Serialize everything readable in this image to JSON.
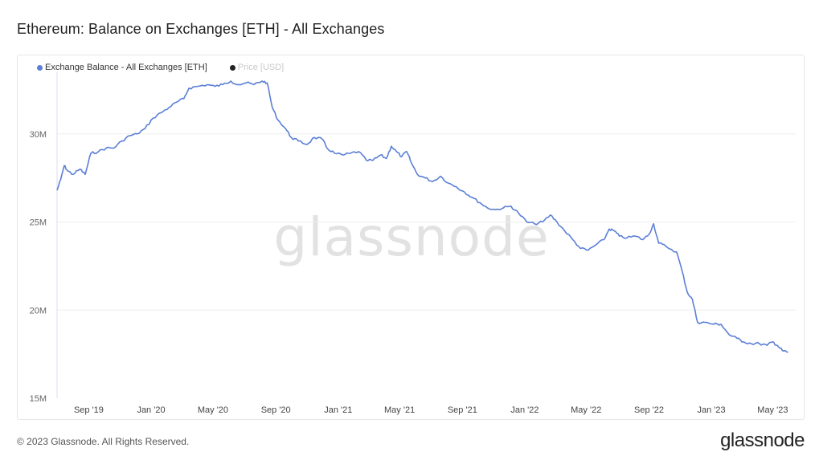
{
  "title": "Ethereum: Balance on Exchanges [ETH] - All Exchanges",
  "footer": "© 2023 Glassnode. All Rights Reserved.",
  "brand": "glassnode",
  "watermark": "glassnode",
  "colors": {
    "series": "#5b7fd6",
    "price": "#222222",
    "grid": "#eeeeee"
  },
  "chart_data": {
    "type": "line",
    "title": "Ethereum: Balance on Exchanges [ETH] - All Exchanges",
    "xlabel": "",
    "ylabel": "",
    "grid": true,
    "legend_position": "top-left",
    "x_range": [
      "2019-07-01",
      "2023-06-15"
    ],
    "ylim": [
      15000000,
      33500000
    ],
    "y_ticks": [
      {
        "value": 15000000,
        "label": "15M"
      },
      {
        "value": 20000000,
        "label": "20M"
      },
      {
        "value": 25000000,
        "label": "25M"
      },
      {
        "value": 30000000,
        "label": "30M"
      }
    ],
    "x_ticks": [
      {
        "date": "2019-09-01",
        "label": "Sep '19"
      },
      {
        "date": "2020-01-01",
        "label": "Jan '20"
      },
      {
        "date": "2020-05-01",
        "label": "May '20"
      },
      {
        "date": "2020-09-01",
        "label": "Sep '20"
      },
      {
        "date": "2021-01-01",
        "label": "Jan '21"
      },
      {
        "date": "2021-05-01",
        "label": "May '21"
      },
      {
        "date": "2021-09-01",
        "label": "Sep '21"
      },
      {
        "date": "2022-01-01",
        "label": "Jan '22"
      },
      {
        "date": "2022-05-01",
        "label": "May '22"
      },
      {
        "date": "2022-09-01",
        "label": "Sep '22"
      },
      {
        "date": "2023-01-01",
        "label": "Jan '23"
      },
      {
        "date": "2023-05-01",
        "label": "May '23"
      }
    ],
    "series": [
      {
        "name": "Exchange Balance - All Exchanges [ETH]",
        "color": "#5b7fd6",
        "active": true,
        "points": [
          [
            "2019-07-01",
            26800000
          ],
          [
            "2019-07-08",
            27400000
          ],
          [
            "2019-07-15",
            28200000
          ],
          [
            "2019-07-22",
            27900000
          ],
          [
            "2019-08-01",
            27700000
          ],
          [
            "2019-08-15",
            28000000
          ],
          [
            "2019-08-25",
            27700000
          ],
          [
            "2019-09-05",
            28900000
          ],
          [
            "2019-09-20",
            29000000
          ],
          [
            "2019-10-05",
            29200000
          ],
          [
            "2019-10-20",
            29200000
          ],
          [
            "2019-11-05",
            29600000
          ],
          [
            "2019-11-20",
            29900000
          ],
          [
            "2019-12-05",
            30000000
          ],
          [
            "2019-12-20",
            30300000
          ],
          [
            "2020-01-05",
            30900000
          ],
          [
            "2020-01-20",
            31200000
          ],
          [
            "2020-02-05",
            31500000
          ],
          [
            "2020-02-20",
            31800000
          ],
          [
            "2020-03-05",
            32000000
          ],
          [
            "2020-03-15",
            32600000
          ],
          [
            "2020-04-01",
            32700000
          ],
          [
            "2020-04-20",
            32800000
          ],
          [
            "2020-05-05",
            32700000
          ],
          [
            "2020-05-20",
            32800000
          ],
          [
            "2020-06-05",
            33000000
          ],
          [
            "2020-06-20",
            32800000
          ],
          [
            "2020-07-05",
            32900000
          ],
          [
            "2020-07-20",
            32800000
          ],
          [
            "2020-08-05",
            33000000
          ],
          [
            "2020-08-15",
            32900000
          ],
          [
            "2020-08-25",
            31500000
          ],
          [
            "2020-09-05",
            30800000
          ],
          [
            "2020-09-20",
            30300000
          ],
          [
            "2020-10-01",
            29800000
          ],
          [
            "2020-10-15",
            29600000
          ],
          [
            "2020-11-01",
            29400000
          ],
          [
            "2020-11-15",
            29800000
          ],
          [
            "2020-12-01",
            29700000
          ],
          [
            "2020-12-10",
            29200000
          ],
          [
            "2020-12-25",
            28900000
          ],
          [
            "2021-01-10",
            28800000
          ],
          [
            "2021-01-25",
            28900000
          ],
          [
            "2021-02-10",
            29000000
          ],
          [
            "2021-02-25",
            28500000
          ],
          [
            "2021-03-10",
            28500000
          ],
          [
            "2021-03-25",
            28800000
          ],
          [
            "2021-04-05",
            28600000
          ],
          [
            "2021-04-15",
            29300000
          ],
          [
            "2021-04-25",
            29000000
          ],
          [
            "2021-05-05",
            28700000
          ],
          [
            "2021-05-15",
            29000000
          ],
          [
            "2021-05-25",
            28300000
          ],
          [
            "2021-06-05",
            27700000
          ],
          [
            "2021-06-20",
            27500000
          ],
          [
            "2021-07-05",
            27300000
          ],
          [
            "2021-07-20",
            27600000
          ],
          [
            "2021-08-05",
            27200000
          ],
          [
            "2021-08-20",
            27000000
          ],
          [
            "2021-09-05",
            26700000
          ],
          [
            "2021-09-20",
            26400000
          ],
          [
            "2021-10-05",
            26100000
          ],
          [
            "2021-10-20",
            25800000
          ],
          [
            "2021-11-05",
            25700000
          ],
          [
            "2021-11-20",
            25800000
          ],
          [
            "2021-12-05",
            25900000
          ],
          [
            "2021-12-20",
            25500000
          ],
          [
            "2022-01-05",
            25000000
          ],
          [
            "2022-01-20",
            24900000
          ],
          [
            "2022-02-05",
            25000000
          ],
          [
            "2022-02-20",
            25400000
          ],
          [
            "2022-03-05",
            25000000
          ],
          [
            "2022-03-20",
            24500000
          ],
          [
            "2022-04-05",
            24000000
          ],
          [
            "2022-04-20",
            23500000
          ],
          [
            "2022-05-05",
            23400000
          ],
          [
            "2022-05-20",
            23700000
          ],
          [
            "2022-06-05",
            24000000
          ],
          [
            "2022-06-15",
            24600000
          ],
          [
            "2022-06-25",
            24500000
          ],
          [
            "2022-07-05",
            24200000
          ],
          [
            "2022-07-20",
            24100000
          ],
          [
            "2022-08-05",
            24200000
          ],
          [
            "2022-08-20",
            24000000
          ],
          [
            "2022-09-01",
            24300000
          ],
          [
            "2022-09-10",
            24900000
          ],
          [
            "2022-09-20",
            23800000
          ],
          [
            "2022-10-05",
            23600000
          ],
          [
            "2022-10-25",
            23300000
          ],
          [
            "2022-11-05",
            22200000
          ],
          [
            "2022-11-15",
            21000000
          ],
          [
            "2022-11-25",
            20600000
          ],
          [
            "2022-12-05",
            19300000
          ],
          [
            "2022-12-20",
            19300000
          ],
          [
            "2023-01-05",
            19200000
          ],
          [
            "2023-01-20",
            19200000
          ],
          [
            "2023-02-05",
            18600000
          ],
          [
            "2023-02-20",
            18400000
          ],
          [
            "2023-03-05",
            18200000
          ],
          [
            "2023-03-20",
            18100000
          ],
          [
            "2023-04-05",
            18100000
          ],
          [
            "2023-04-20",
            18000000
          ],
          [
            "2023-05-01",
            18200000
          ],
          [
            "2023-05-10",
            18000000
          ],
          [
            "2023-05-20",
            17700000
          ],
          [
            "2023-05-31",
            17600000
          ]
        ]
      },
      {
        "name": "Price [USD]",
        "color": "#222222",
        "active": false,
        "points": []
      }
    ]
  }
}
